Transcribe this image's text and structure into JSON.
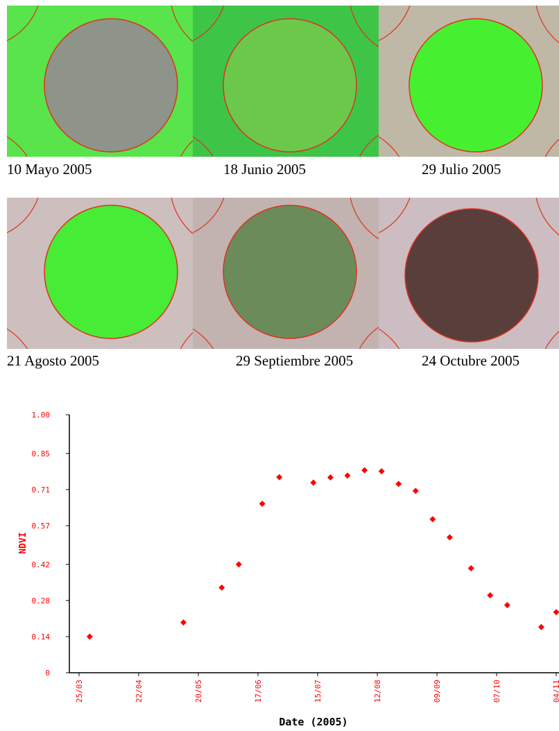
{
  "panels": [
    {
      "caption": "10 Mayo 2005",
      "bg": "#58e44a",
      "circle": "#8e948a"
    },
    {
      "caption": "18 Junio 2005",
      "bg": "#3ec548",
      "circle": "#6cc84b"
    },
    {
      "caption": "29 Julio 2005",
      "bg": "#c0b8a6",
      "circle": "#46f031"
    },
    {
      "caption": "21 Agosto 2005",
      "bg": "#cdbfbd",
      "circle": "#46ec35"
    },
    {
      "caption": "29 Septiembre 2005",
      "bg": "#c2b3b1",
      "circle": "#6b8c5a"
    },
    {
      "caption": "24 Octubre 2005",
      "bg": "#cbbdc2",
      "circle": "#5a3e3c"
    }
  ],
  "chart_data": {
    "type": "scatter",
    "xlabel": "Date (2005)",
    "ylabel": "NDVI",
    "x_ticks": [
      "25/03",
      "22/04",
      "20/05",
      "17/06",
      "15/07",
      "12/08",
      "09/09",
      "07/10",
      "04/11"
    ],
    "y_ticks": [
      "0",
      "0.14",
      "0.28",
      "0.42",
      "0.57",
      "0.71",
      "0.85",
      "1.00"
    ],
    "ylim": [
      0,
      1.0
    ],
    "xlim": [
      "2005-03-25",
      "2005-11-04"
    ],
    "color": "#ff0000",
    "points": [
      {
        "x": "2005-03-30",
        "y": 0.14
      },
      {
        "x": "2005-05-13",
        "y": 0.195
      },
      {
        "x": "2005-05-31",
        "y": 0.33
      },
      {
        "x": "2005-06-08",
        "y": 0.42
      },
      {
        "x": "2005-06-19",
        "y": 0.655
      },
      {
        "x": "2005-06-27",
        "y": 0.758
      },
      {
        "x": "2005-07-13",
        "y": 0.737
      },
      {
        "x": "2005-07-21",
        "y": 0.757
      },
      {
        "x": "2005-07-29",
        "y": 0.764
      },
      {
        "x": "2005-08-06",
        "y": 0.785
      },
      {
        "x": "2005-08-14",
        "y": 0.781
      },
      {
        "x": "2005-08-22",
        "y": 0.732
      },
      {
        "x": "2005-08-30",
        "y": 0.705
      },
      {
        "x": "2005-09-07",
        "y": 0.595
      },
      {
        "x": "2005-09-15",
        "y": 0.525
      },
      {
        "x": "2005-09-25",
        "y": 0.405
      },
      {
        "x": "2005-10-04",
        "y": 0.3
      },
      {
        "x": "2005-10-12",
        "y": 0.262
      },
      {
        "x": "2005-10-28",
        "y": 0.177
      },
      {
        "x": "2005-11-04",
        "y": 0.235
      }
    ]
  }
}
